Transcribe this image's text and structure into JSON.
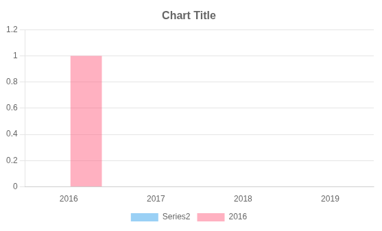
{
  "chart_data": {
    "type": "bar",
    "title": "Chart Title",
    "categories": [
      "2016",
      "2017",
      "2018",
      "2019"
    ],
    "series": [
      {
        "name": "Series2",
        "values": [
          0,
          0,
          0,
          0
        ]
      },
      {
        "name": "2016",
        "values": [
          1,
          0,
          0,
          0
        ]
      }
    ],
    "ylim": [
      0,
      1.2
    ],
    "yticks": [
      0,
      0.2,
      0.4,
      0.6,
      0.8,
      1,
      1.2
    ],
    "grid": true,
    "legend": "bottom"
  }
}
